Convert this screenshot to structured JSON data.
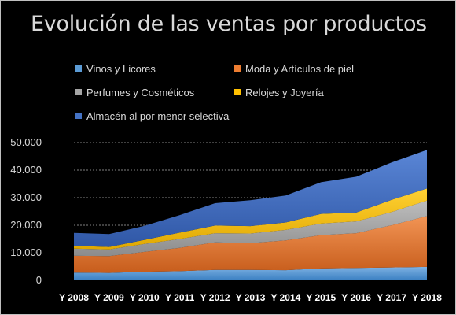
{
  "chart_data": {
    "type": "area",
    "stacked": true,
    "title": "Evolución de las ventas por productos",
    "xlabel": "",
    "ylabel": "",
    "ylim": [
      0,
      50000
    ],
    "y_ticks": [
      "0",
      "10.000",
      "20.000",
      "30.000",
      "40.000",
      "50.000"
    ],
    "grid": "horizontal dotted",
    "legend_position": "top",
    "categories": [
      "Y 2008",
      "Y 2009",
      "Y 2010",
      "Y 2011",
      "Y 2012",
      "Y 2013",
      "Y 2014",
      "Y 2015",
      "Y 2016",
      "Y 2017",
      "Y 2018"
    ],
    "series": [
      {
        "name": "Vinos y Licores",
        "color": "#5b9bd5",
        "values": [
          2800,
          2700,
          3100,
          3300,
          3800,
          3800,
          3700,
          4300,
          4500,
          4700,
          4900
        ]
      },
      {
        "name": "Moda y Artículos de piel",
        "color": "#ed7d31",
        "values": [
          6100,
          6100,
          7200,
          8500,
          10000,
          9700,
          10800,
          12100,
          12600,
          15300,
          18400
        ]
      },
      {
        "name": "Perfumes y Cosméticos",
        "color": "#a5a5a5",
        "values": [
          2600,
          2400,
          2900,
          3200,
          3300,
          3500,
          3800,
          4200,
          4300,
          4800,
          5600
        ]
      },
      {
        "name": "Relojes y Joyería",
        "color": "#ffc000",
        "values": [
          1000,
          900,
          1500,
          2300,
          2800,
          2700,
          2700,
          3500,
          3200,
          4400,
          4400
        ]
      },
      {
        "name": "Almacén al por menor selectiva",
        "color": "#4472c4",
        "values": [
          4700,
          4700,
          5100,
          6400,
          8100,
          9400,
          9800,
          11500,
          13000,
          13600,
          14000
        ]
      }
    ]
  }
}
